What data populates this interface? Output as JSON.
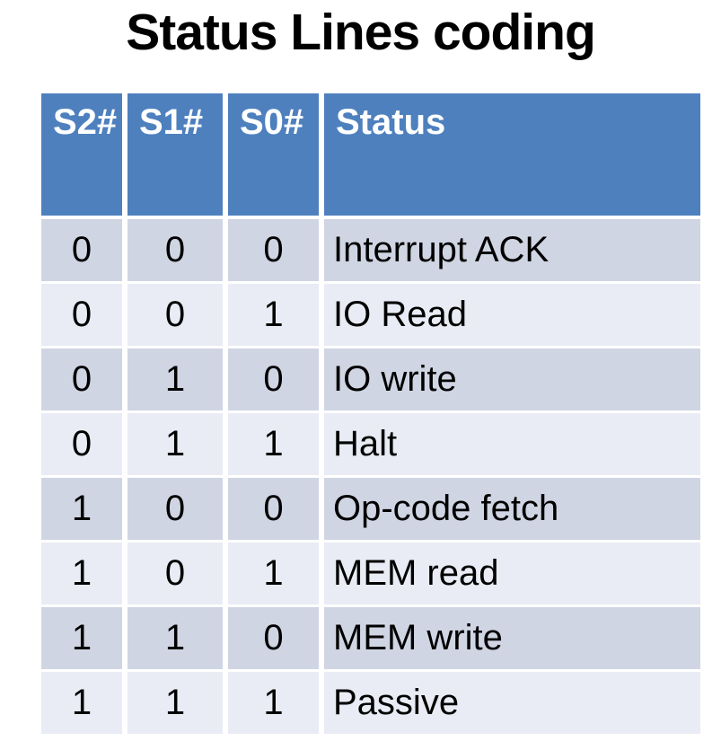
{
  "title": "Status Lines coding",
  "colors": {
    "header_bg": "#4E80BE",
    "header_text": "#FFFFFF",
    "band_dark": "#D0D5E3",
    "band_light": "#E9ECF4",
    "body_text": "#000000",
    "separator": "#FFFFFF",
    "page_bg": "#FFFFFF"
  },
  "table": {
    "headers": [
      "S2#",
      "S1#",
      "S0#",
      "Status"
    ],
    "rows": [
      [
        "0",
        "0",
        "0",
        "Interrupt ACK"
      ],
      [
        "0",
        "0",
        "1",
        "IO Read"
      ],
      [
        "0",
        "1",
        "0",
        "IO write"
      ],
      [
        "0",
        "1",
        "1",
        "Halt"
      ],
      [
        "1",
        "0",
        "0",
        "Op-code fetch"
      ],
      [
        "1",
        "0",
        "1",
        "MEM read"
      ],
      [
        "1",
        "1",
        "0",
        "MEM write"
      ],
      [
        "1",
        "1",
        "1",
        "Passive"
      ]
    ]
  }
}
